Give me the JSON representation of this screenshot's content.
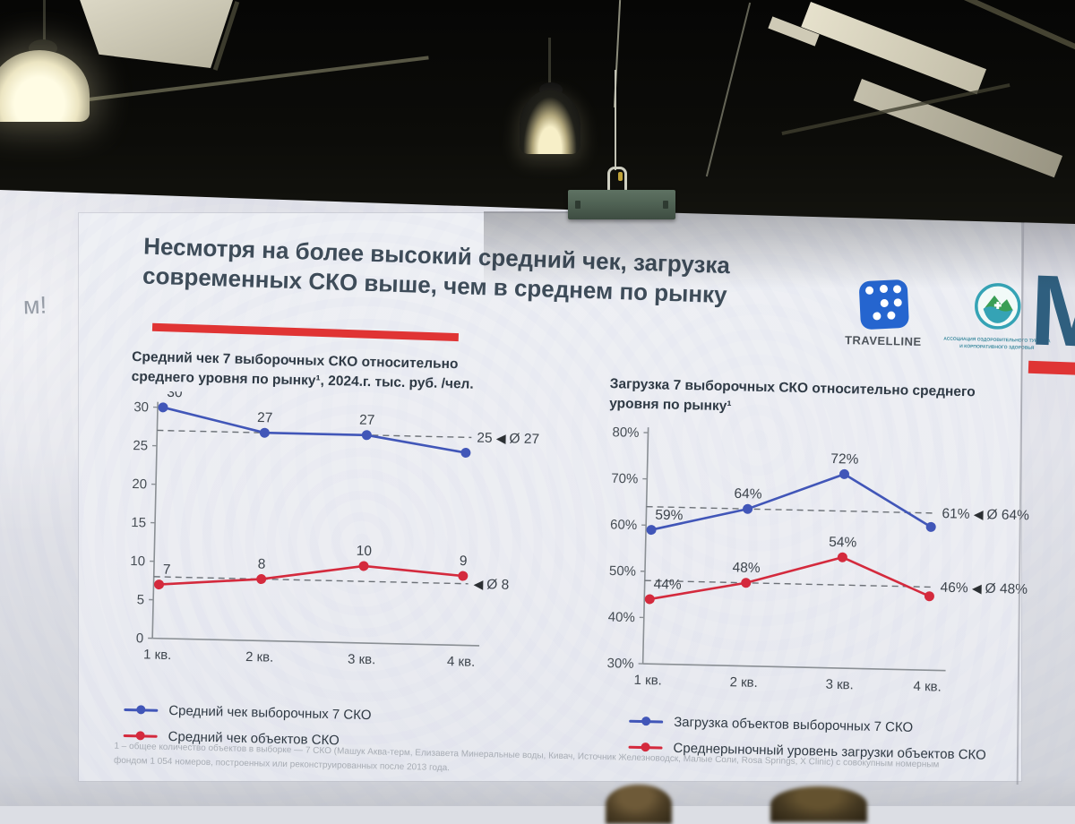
{
  "environment": {
    "left_wall_text": "м!",
    "right_panel_letter": "М"
  },
  "slide": {
    "title": {
      "line1": "Несмотря на более высокий средний чек, загрузка",
      "line2": "современных СКО выше, чем в среднем по рынку"
    },
    "logos": {
      "travelline": {
        "label": "TRAVELLINE"
      },
      "association": {
        "line1": "АССОЦИАЦИЯ ОЗДОРОВИТЕЛЬНОГО ТУРИЗМА",
        "line2": "И КОРПОРАТИВНОГО ЗДОРОВЬЯ"
      }
    },
    "footnote": "1 – общее количество объектов в выборке — 7 СКО (Машук Аква-терм, Елизавета Минеральные воды, Кивач, Источник Железноводск, Малые Соли, Rosa Springs, X Clinic) с совокупным номерным фондом 1 054 номеров, построенных или реконструированных после 2013 года.",
    "colors": {
      "accent_red": "#e03434",
      "series_blue": "#4156b8",
      "series_red": "#d42a3d",
      "title_text": "#3e4c59"
    }
  },
  "chart_data": [
    {
      "type": "line",
      "title_lines": [
        "Средний чек 7 выборочных СКО относительно",
        "среднего уровня по рынку¹, 2024.г.  тыс. руб. /чел."
      ],
      "categories": [
        "1 кв.",
        "2 кв.",
        "3 кв.",
        "4 кв."
      ],
      "ylim": [
        0,
        30
      ],
      "yticks": [
        0,
        5,
        10,
        15,
        20,
        25,
        30
      ],
      "ytick_suffix": "",
      "grid": false,
      "legend_position": "bottom",
      "series": [
        {
          "name": "Средний чек выборочных 7 СКО",
          "color": "#4156b8",
          "values": [
            30,
            27,
            27,
            25
          ],
          "point_labels": [
            "30",
            "27",
            "27",
            "25"
          ],
          "average": 27,
          "average_label": "Ø 27",
          "last_label_in_annotation": true
        },
        {
          "name": "Средний чек объектов СКО",
          "color": "#d42a3d",
          "values": [
            7,
            8,
            10,
            9
          ],
          "point_labels": [
            "7",
            "8",
            "10",
            "9"
          ],
          "average": 8,
          "average_label": "Ø 8",
          "last_label_in_annotation": false
        }
      ]
    },
    {
      "type": "line",
      "title_lines": [
        "Загрузка 7 выборочных СКО относительно среднего",
        "уровня по рынку¹"
      ],
      "categories": [
        "1 кв.",
        "2 кв.",
        "3 кв.",
        "4 кв."
      ],
      "ylim": [
        30,
        80
      ],
      "yticks": [
        30,
        40,
        50,
        60,
        70,
        80
      ],
      "ytick_suffix": "%",
      "grid": false,
      "legend_position": "bottom",
      "series": [
        {
          "name": "Загрузка объектов выборочных 7 СКО",
          "color": "#4156b8",
          "values": [
            59,
            64,
            72,
            61
          ],
          "point_labels": [
            "59%",
            "64%",
            "72%",
            "61%"
          ],
          "average": 64,
          "average_label": "Ø 64%",
          "last_label_in_annotation": true
        },
        {
          "name": "Среднерыночный уровень загрузки объектов СКО",
          "color": "#d42a3d",
          "values": [
            44,
            48,
            54,
            46
          ],
          "point_labels": [
            "44%",
            "48%",
            "54%",
            "46%"
          ],
          "average": 48,
          "average_label": "Ø 48%",
          "last_label_in_annotation": true
        }
      ]
    }
  ]
}
